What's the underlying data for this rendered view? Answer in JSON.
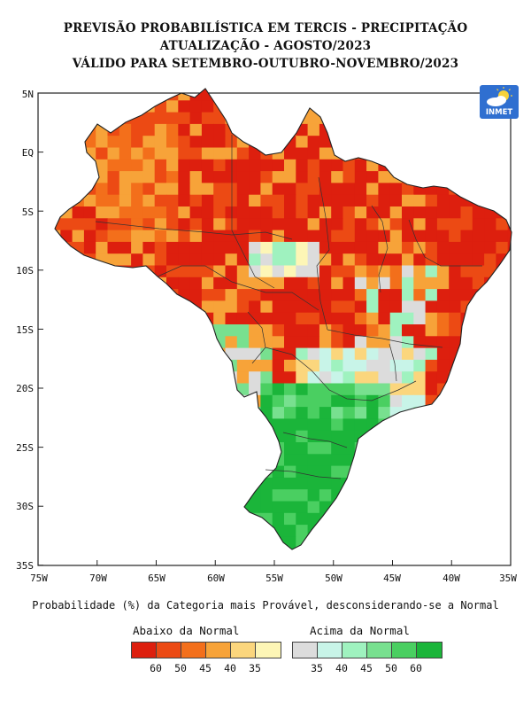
{
  "title": {
    "line1": "PREVISÃO PROBABILÍSTICA EM TERCIS - PRECIPITAÇÃO",
    "line2": "ATUALIZAÇÃO - AGOSTO/2023",
    "line3": "VÁLIDO PARA SETEMBRO-OUTUBRO-NOVEMBRO/2023"
  },
  "logo": {
    "text": "INMET",
    "icon": "sun-cloud-icon"
  },
  "axes": {
    "lat_labels": [
      "5N",
      "EQ",
      "5S",
      "10S",
      "15S",
      "20S",
      "25S",
      "30S",
      "35S"
    ],
    "lon_labels": [
      "75W",
      "70W",
      "65W",
      "60W",
      "55W",
      "50W",
      "45W",
      "40W",
      "35W"
    ]
  },
  "caption": "Probabilidade (%) da Categoria mais Provável, desconsiderando-se a Normal",
  "legend": {
    "below": {
      "title": "Abaixo da Normal",
      "colors": [
        "#dd1f0e",
        "#ec4a14",
        "#f36f1b",
        "#f7a339",
        "#fbd67d",
        "#fdf6b6"
      ],
      "ticks": [
        "60",
        "50",
        "45",
        "40",
        "35"
      ]
    },
    "above": {
      "title": "Acima da Normal",
      "colors": [
        "#dcdcdc",
        "#c8f4e8",
        "#9ff2bf",
        "#78e08f",
        "#4acf61",
        "#1bb53a"
      ],
      "ticks": [
        "35",
        "40",
        "45",
        "50",
        "60"
      ]
    }
  },
  "map_data": {
    "regions": [
      {
        "name": "north-amazon",
        "category": "below",
        "level": 5
      },
      {
        "name": "northeast-coast",
        "category": "below",
        "level": 5
      },
      {
        "name": "center-west",
        "category": "below",
        "level": 4
      },
      {
        "name": "south",
        "category": "above",
        "level": 5
      },
      {
        "name": "southeast-sao-paulo",
        "category": "above",
        "level": 4
      }
    ]
  }
}
